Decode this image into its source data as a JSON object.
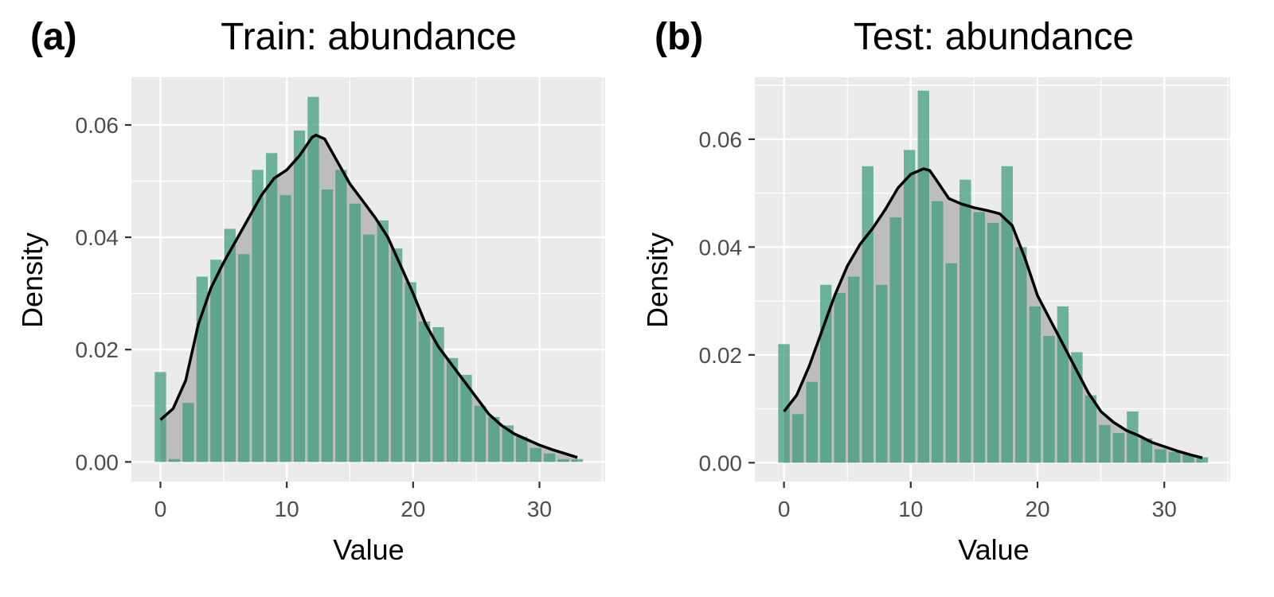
{
  "chart_data": [
    {
      "type": "bar",
      "panel_tag": "(a)",
      "title": "Train: abundance",
      "xlabel": "Value",
      "ylabel": "Density",
      "xlim": [
        -2.3,
        35.2
      ],
      "ylim": [
        -0.0035,
        0.0685
      ],
      "xticks": [
        0,
        10,
        20,
        30
      ],
      "xtick_labels": [
        "0",
        "10",
        "20",
        "30"
      ],
      "yticks": [
        0.0,
        0.02,
        0.04,
        0.06
      ],
      "ytick_labels": [
        "0.00",
        "0.02",
        "0.04",
        "0.06"
      ],
      "bin_width": 1.1,
      "bar_centers": [
        0,
        1.1,
        2.2,
        3.3,
        4.4,
        5.5,
        6.6,
        7.7,
        8.8,
        9.9,
        11.0,
        12.1,
        13.2,
        14.3,
        15.4,
        16.5,
        17.6,
        18.7,
        19.8,
        20.9,
        22.0,
        23.1,
        24.2,
        25.3,
        26.4,
        27.5,
        28.6,
        29.7,
        30.8,
        31.9,
        33.0
      ],
      "values": [
        0.016,
        0.0005,
        0.0105,
        0.033,
        0.036,
        0.0415,
        0.037,
        0.052,
        0.055,
        0.0475,
        0.059,
        0.065,
        0.0485,
        0.052,
        0.046,
        0.0405,
        0.043,
        0.038,
        0.032,
        0.025,
        0.024,
        0.0185,
        0.0155,
        0.01,
        0.008,
        0.0065,
        0.0045,
        0.0025,
        0.0015,
        0.0005,
        0.0005
      ],
      "density_curve": {
        "x": [
          0,
          1,
          2,
          3,
          4,
          5,
          6,
          7,
          8,
          9,
          10,
          11,
          12,
          12.3,
          13,
          14,
          15,
          16,
          17,
          18,
          19,
          20,
          21,
          22,
          23,
          24,
          25,
          26,
          27,
          28,
          29,
          30,
          31,
          32,
          33
        ],
        "y": [
          0.0075,
          0.0095,
          0.0145,
          0.0245,
          0.031,
          0.0355,
          0.0395,
          0.0435,
          0.0475,
          0.0505,
          0.052,
          0.0545,
          0.0578,
          0.0582,
          0.0575,
          0.0535,
          0.0495,
          0.0465,
          0.0435,
          0.04,
          0.035,
          0.03,
          0.0245,
          0.0205,
          0.0175,
          0.0145,
          0.0115,
          0.0085,
          0.0065,
          0.005,
          0.004,
          0.003,
          0.0022,
          0.0015,
          0.0008
        ]
      },
      "grid": true,
      "colors": {
        "bar": "#3a9a7d",
        "bar_opacity": 0.72,
        "density_fill": "#bdbdbd",
        "density_line": "#000000",
        "panel_bg": "#ebebeb",
        "grid": "#ffffff"
      }
    },
    {
      "type": "bar",
      "panel_tag": "(b)",
      "title": "Test: abundance",
      "xlabel": "Value",
      "ylabel": "Density",
      "xlim": [
        -2.3,
        35.2
      ],
      "ylim": [
        -0.0035,
        0.0715
      ],
      "xticks": [
        0,
        10,
        20,
        30
      ],
      "xtick_labels": [
        "0",
        "10",
        "20",
        "30"
      ],
      "yticks": [
        0.0,
        0.02,
        0.04,
        0.06
      ],
      "ytick_labels": [
        "0.00",
        "0.02",
        "0.04",
        "0.06"
      ],
      "bin_width": 1.1,
      "bar_centers": [
        0,
        1.1,
        2.2,
        3.3,
        4.4,
        5.5,
        6.6,
        7.7,
        8.8,
        9.9,
        11.0,
        12.1,
        13.2,
        14.3,
        15.4,
        16.5,
        17.6,
        18.7,
        19.8,
        20.9,
        22.0,
        23.1,
        24.2,
        25.3,
        26.4,
        27.5,
        28.6,
        29.7,
        30.8,
        31.9,
        33.0
      ],
      "values": [
        0.022,
        0.009,
        0.015,
        0.033,
        0.0315,
        0.0345,
        0.055,
        0.033,
        0.0455,
        0.058,
        0.069,
        0.0485,
        0.037,
        0.0525,
        0.0465,
        0.0445,
        0.055,
        0.04,
        0.029,
        0.0235,
        0.029,
        0.0205,
        0.0125,
        0.007,
        0.0055,
        0.0095,
        0.0045,
        0.0025,
        0.002,
        0.0015,
        0.001
      ],
      "density_curve": {
        "x": [
          0,
          1,
          2,
          3,
          4,
          5,
          6,
          7,
          8,
          9,
          10,
          11,
          11.5,
          12,
          13,
          14,
          15,
          16,
          17,
          18,
          19,
          20,
          21,
          22,
          23,
          24,
          25,
          26,
          27,
          28,
          29,
          30,
          31,
          32,
          33
        ],
        "y": [
          0.0095,
          0.0125,
          0.018,
          0.0245,
          0.031,
          0.0365,
          0.0405,
          0.0435,
          0.047,
          0.051,
          0.0535,
          0.0545,
          0.0542,
          0.0525,
          0.049,
          0.048,
          0.0473,
          0.0468,
          0.0462,
          0.044,
          0.038,
          0.031,
          0.0265,
          0.022,
          0.0175,
          0.013,
          0.0095,
          0.0075,
          0.006,
          0.005,
          0.0038,
          0.003,
          0.0022,
          0.0015,
          0.0009
        ]
      },
      "grid": true,
      "colors": {
        "bar": "#3a9a7d",
        "bar_opacity": 0.72,
        "density_fill": "#bdbdbd",
        "density_line": "#000000",
        "panel_bg": "#ebebeb",
        "grid": "#ffffff"
      }
    }
  ]
}
